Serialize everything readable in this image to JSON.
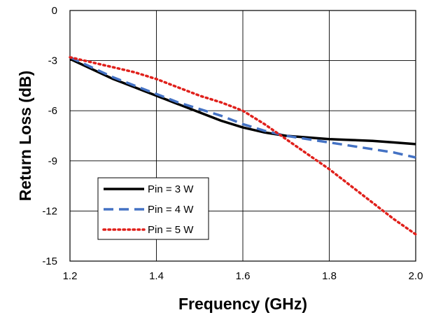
{
  "chart_data": {
    "type": "line",
    "title": "",
    "xlabel": "Frequency (GHz)",
    "ylabel": "Return Loss (dB)",
    "xlim": [
      1.2,
      2.0
    ],
    "ylim": [
      -15,
      0
    ],
    "x_ticks": [
      "1.2",
      "1.4",
      "1.6",
      "1.8",
      "2.0"
    ],
    "y_ticks": [
      "0",
      "-3",
      "-6",
      "-9",
      "-12",
      "-15"
    ],
    "grid": true,
    "legend_position": "bottom-left",
    "series": [
      {
        "name": "Pin = 3 W",
        "color": "#000000",
        "style": "solid",
        "x": [
          1.2,
          1.25,
          1.3,
          1.35,
          1.4,
          1.45,
          1.5,
          1.55,
          1.6,
          1.65,
          1.7,
          1.75,
          1.8,
          1.85,
          1.9,
          1.95,
          2.0
        ],
        "y": [
          -2.9,
          -3.5,
          -4.1,
          -4.6,
          -5.1,
          -5.6,
          -6.1,
          -6.6,
          -7.0,
          -7.3,
          -7.5,
          -7.6,
          -7.7,
          -7.75,
          -7.8,
          -7.9,
          -8.0
        ]
      },
      {
        "name": "Pin = 4 W",
        "color": "#4472C4",
        "style": "dashed",
        "x": [
          1.2,
          1.25,
          1.3,
          1.35,
          1.4,
          1.45,
          1.5,
          1.55,
          1.6,
          1.65,
          1.7,
          1.75,
          1.8,
          1.85,
          1.9,
          1.95,
          2.0
        ],
        "y": [
          -2.8,
          -3.4,
          -4.0,
          -4.5,
          -5.0,
          -5.5,
          -5.9,
          -6.3,
          -6.8,
          -7.2,
          -7.5,
          -7.7,
          -7.9,
          -8.1,
          -8.3,
          -8.5,
          -8.8
        ]
      },
      {
        "name": "Pin = 5 W",
        "color": "#E0201B",
        "style": "dotted",
        "x": [
          1.2,
          1.25,
          1.3,
          1.35,
          1.4,
          1.45,
          1.5,
          1.55,
          1.6,
          1.65,
          1.7,
          1.75,
          1.8,
          1.85,
          1.9,
          1.95,
          2.0
        ],
        "y": [
          -2.8,
          -3.1,
          -3.4,
          -3.7,
          -4.1,
          -4.6,
          -5.1,
          -5.5,
          -6.0,
          -6.8,
          -7.7,
          -8.6,
          -9.5,
          -10.5,
          -11.5,
          -12.5,
          -13.4
        ]
      }
    ]
  }
}
